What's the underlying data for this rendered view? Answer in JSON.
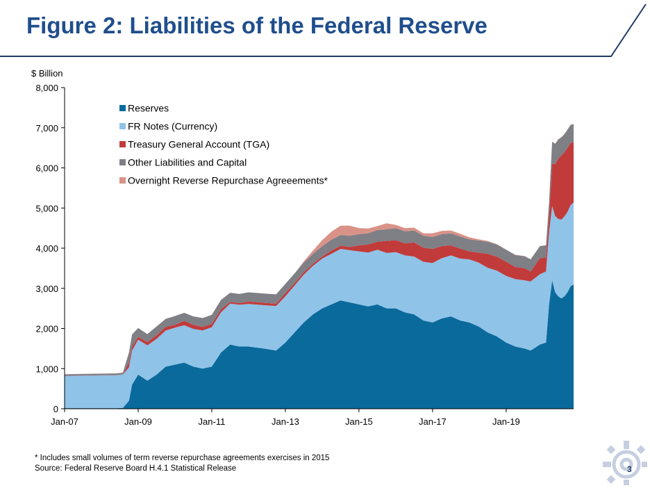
{
  "title": "Figure 2: Liabilities of the Federal Reserve",
  "footnote": "* Includes small volumes of term reverse repurchase agreements exercises in 2015",
  "source": "Source: Federal Reserve Board H.4.1 Statistical Release",
  "page_number": "3",
  "colors": {
    "title": "#1f4e8c",
    "rule": "#1f3864",
    "reserves": "#0b6a9c",
    "fr_notes": "#8fc3e8",
    "tga": "#c23b3b",
    "other": "#7f7f86",
    "onrrp": "#d99287"
  },
  "chart_data": {
    "type": "area",
    "stacked": true,
    "ylabel": "$ Billion",
    "ylim": [
      0,
      8000
    ],
    "yticks": [
      0,
      1000,
      2000,
      3000,
      4000,
      5000,
      6000,
      7000,
      8000
    ],
    "ytick_labels": [
      "0",
      "1,000",
      "2,000",
      "3,000",
      "4,000",
      "5,000",
      "6,000",
      "7,000",
      "8,000"
    ],
    "xlim": [
      "2007-01",
      "2020-11"
    ],
    "xticks": [
      "2007-01",
      "2009-01",
      "2011-01",
      "2013-01",
      "2015-01",
      "2017-01",
      "2019-01"
    ],
    "xtick_labels": [
      "Jan-07",
      "Jan-09",
      "Jan-11",
      "Jan-13",
      "Jan-15",
      "Jan-17",
      "Jan-19"
    ],
    "legend_position": "top-left",
    "x": [
      "2007-01",
      "2008-06",
      "2008-08",
      "2008-10",
      "2008-11",
      "2009-01",
      "2009-04",
      "2009-07",
      "2009-10",
      "2010-01",
      "2010-04",
      "2010-07",
      "2010-10",
      "2011-01",
      "2011-04",
      "2011-07",
      "2011-10",
      "2012-01",
      "2012-06",
      "2012-10",
      "2013-01",
      "2013-04",
      "2013-07",
      "2013-10",
      "2014-01",
      "2014-04",
      "2014-07",
      "2014-10",
      "2015-01",
      "2015-04",
      "2015-07",
      "2015-10",
      "2016-01",
      "2016-04",
      "2016-07",
      "2016-10",
      "2017-01",
      "2017-04",
      "2017-07",
      "2017-10",
      "2018-01",
      "2018-04",
      "2018-07",
      "2018-10",
      "2019-01",
      "2019-04",
      "2019-07",
      "2019-09",
      "2019-12",
      "2020-02",
      "2020-03",
      "2020-04",
      "2020-05",
      "2020-06",
      "2020-07",
      "2020-08",
      "2020-09",
      "2020-10",
      "2020-11"
    ],
    "series": [
      {
        "name": "Reserves",
        "color": "#0b6a9c",
        "values": [
          15,
          15,
          20,
          200,
          600,
          850,
          700,
          850,
          1050,
          1100,
          1150,
          1050,
          1000,
          1050,
          1400,
          1600,
          1550,
          1550,
          1500,
          1450,
          1650,
          1900,
          2150,
          2350,
          2500,
          2600,
          2700,
          2650,
          2600,
          2550,
          2600,
          2500,
          2500,
          2400,
          2350,
          2200,
          2150,
          2250,
          2300,
          2200,
          2150,
          2050,
          1900,
          1800,
          1650,
          1550,
          1500,
          1450,
          1600,
          1650,
          2600,
          3200,
          2900,
          2800,
          2750,
          2800,
          2900,
          3050,
          3100
        ]
      },
      {
        "name": "FR Notes (Currency)",
        "color": "#8fc3e8",
        "values": [
          800,
          820,
          830,
          830,
          850,
          870,
          880,
          890,
          900,
          920,
          930,
          940,
          950,
          980,
          1000,
          1020,
          1040,
          1060,
          1080,
          1110,
          1150,
          1170,
          1190,
          1210,
          1240,
          1260,
          1280,
          1300,
          1320,
          1340,
          1360,
          1380,
          1400,
          1420,
          1440,
          1460,
          1480,
          1500,
          1520,
          1540,
          1570,
          1590,
          1610,
          1640,
          1660,
          1680,
          1700,
          1720,
          1750,
          1770,
          1800,
          1850,
          1900,
          1930,
          1960,
          1990,
          2000,
          2020,
          2040
        ]
      },
      {
        "name": "Treasury General Account (TGA)",
        "color": "#c23b3b",
        "values": [
          5,
          5,
          5,
          120,
          100,
          70,
          80,
          90,
          90,
          70,
          110,
          100,
          90,
          80,
          80,
          40,
          40,
          60,
          60,
          60,
          80,
          60,
          60,
          50,
          50,
          80,
          80,
          80,
          150,
          200,
          200,
          300,
          300,
          300,
          350,
          350,
          350,
          300,
          250,
          250,
          200,
          250,
          350,
          350,
          350,
          300,
          300,
          250,
          400,
          350,
          400,
          1050,
          1300,
          1500,
          1600,
          1600,
          1600,
          1550,
          1500
        ]
      },
      {
        "name": "Other Liabilities and Capital",
        "color": "#7f7f86",
        "values": [
          40,
          40,
          45,
          250,
          300,
          220,
          200,
          220,
          200,
          220,
          200,
          210,
          220,
          230,
          230,
          230,
          230,
          230,
          230,
          230,
          230,
          240,
          240,
          250,
          260,
          270,
          270,
          280,
          280,
          280,
          290,
          290,
          300,
          300,
          300,
          300,
          300,
          300,
          300,
          300,
          300,
          300,
          300,
          300,
          300,
          300,
          300,
          300,
          300,
          300,
          350,
          550,
          500,
          480,
          450,
          450,
          450,
          450,
          450
        ]
      },
      {
        "name": "Overnight Reverse Repurchase Agreeements*",
        "color": "#d99287",
        "values": [
          0,
          0,
          0,
          0,
          0,
          0,
          0,
          0,
          0,
          0,
          0,
          0,
          0,
          0,
          0,
          0,
          0,
          0,
          0,
          0,
          0,
          0,
          30,
          80,
          150,
          200,
          230,
          250,
          150,
          120,
          100,
          150,
          80,
          80,
          70,
          60,
          90,
          80,
          70,
          70,
          50,
          30,
          20,
          10,
          5,
          5,
          5,
          5,
          5,
          5,
          5,
          5,
          5,
          5,
          5,
          5,
          5,
          5,
          5
        ]
      }
    ]
  }
}
